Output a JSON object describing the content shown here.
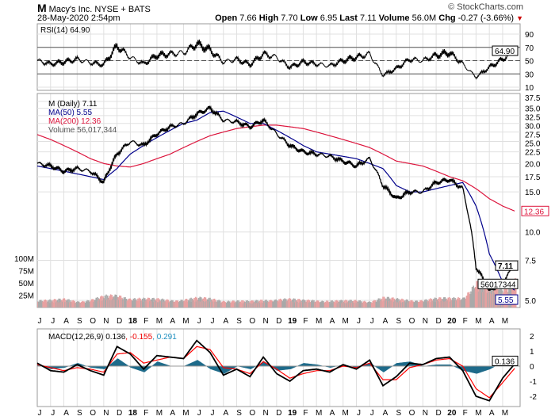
{
  "header": {
    "symbol": "M",
    "name": "Macy's Inc.",
    "exchange": "NYSE + BATS",
    "date": "28-May-2020 2:54pm",
    "brand": "© StockCharts.com",
    "open_label": "Open",
    "open": "7.66",
    "high_label": "High",
    "high": "7.70",
    "low_label": "Low",
    "low": "6.95",
    "last_label": "Last",
    "last": "7.11",
    "volume_label": "Volume",
    "volume": "56.0M",
    "chg_label": "Chg",
    "chg": "-0.27 (-3.66%)"
  },
  "colors": {
    "price": "#000000",
    "ma50": "#00008b",
    "ma200": "#dc143c",
    "vol_up": "#a9a9a9",
    "vol_down": "#e8a0a0",
    "rsi": "#000000",
    "rsi_fill": "#8b5a5a",
    "macd": "#000000",
    "signal": "#ff0000",
    "hist": "#1f6b8a",
    "grid": "#e0e0e0"
  },
  "chart_data": [
    {
      "type": "line",
      "panel": "rsi",
      "legend": "RSI(14) 64.90",
      "y_ticks": [
        "90",
        "70",
        "50",
        "30",
        "10"
      ],
      "ylim": [
        0,
        100
      ],
      "levels": [
        70,
        50,
        30
      ],
      "last_label": "64.90",
      "x": [
        0,
        1,
        2,
        3,
        4,
        5,
        6,
        7,
        8,
        9,
        10,
        11,
        12,
        13,
        14,
        15,
        16,
        17,
        18,
        19,
        20,
        21,
        22,
        23,
        24,
        25,
        26,
        27,
        28,
        29,
        30,
        31,
        32,
        33,
        34,
        35,
        35.9
      ],
      "values": [
        50,
        45,
        48,
        52,
        47,
        44,
        72,
        55,
        45,
        58,
        60,
        62,
        75,
        66,
        48,
        52,
        44,
        60,
        55,
        40,
        48,
        45,
        42,
        50,
        55,
        60,
        28,
        38,
        52,
        50,
        58,
        62,
        45,
        25,
        40,
        52,
        64.9
      ]
    },
    {
      "type": "line",
      "panel": "price",
      "scale": "log",
      "legend": [
        "M (Daily) 7.11",
        "MA(50) 5.55",
        "MA(200) 12.36",
        "Volume 56,017,344"
      ],
      "y_ticks": [
        "37.5",
        "35.0",
        "32.5",
        "30.0",
        "27.5",
        "25.0",
        "22.5",
        "20.0",
        "17.5",
        "15.0",
        "10.0",
        "7.5",
        "5.0"
      ],
      "vol_ticks": [
        "100M",
        "75M",
        "50M",
        "25M"
      ],
      "x": [
        0,
        1,
        2,
        3,
        4,
        5,
        6,
        7,
        8,
        9,
        10,
        11,
        12,
        13,
        14,
        15,
        16,
        17,
        18,
        19,
        20,
        21,
        22,
        23,
        24,
        25,
        26,
        27,
        28,
        29,
        30,
        31,
        32,
        33,
        34,
        35,
        35.9
      ],
      "series": [
        {
          "name": "M (Daily)",
          "values": [
            20,
            19.5,
            18.5,
            19,
            18.5,
            16.5,
            22,
            25,
            24,
            27,
            29,
            30,
            33,
            35,
            31,
            30.5,
            29,
            31,
            27,
            24,
            22.5,
            22,
            21.5,
            20.5,
            19.5,
            21,
            16,
            14,
            15,
            15,
            16.5,
            17,
            15.5,
            7,
            5.5,
            6,
            7.11
          ]
        },
        {
          "name": "MA(50)",
          "values": [
            19.5,
            19,
            18.5,
            18,
            17.5,
            17,
            19,
            22,
            24,
            26,
            28,
            30,
            31,
            33.5,
            34,
            32,
            30,
            30,
            28,
            26,
            24,
            22.5,
            22,
            21.5,
            21,
            20,
            19,
            16,
            15,
            15,
            15.5,
            16,
            16.5,
            13,
            8,
            6,
            5.55
          ]
        },
        {
          "name": "MA(200)",
          "values": [
            26.8,
            25.5,
            24,
            22.5,
            21,
            20,
            19.5,
            19.3,
            20,
            21,
            22,
            23.5,
            25,
            26.5,
            27.5,
            28.5,
            29,
            29.5,
            29.5,
            29,
            28.5,
            27.5,
            26.5,
            25.5,
            24.5,
            23.5,
            22,
            20.5,
            20,
            19.5,
            18.5,
            17.5,
            16.8,
            15.5,
            14,
            13,
            12.36
          ]
        },
        {
          "name": "Volume (M)",
          "values": [
            14,
            13,
            15,
            12,
            14,
            20,
            22,
            18,
            16,
            15,
            14,
            15,
            17,
            16,
            13,
            12,
            11,
            14,
            16,
            15,
            13,
            14,
            12,
            12,
            13,
            12,
            18,
            15,
            14,
            14,
            16,
            17,
            20,
            45,
            40,
            35,
            56
          ]
        }
      ],
      "price_last": "7.11",
      "ma50_last": "5.55",
      "ma200_last": "12.36",
      "volume_last": "56017344"
    },
    {
      "type": "line",
      "panel": "macd",
      "legend": {
        "name": "MACD(12,26,9)",
        "macd": "0.136",
        "signal": "-0.155",
        "hist": "0.291"
      },
      "y_ticks": [
        "2",
        "1",
        "0",
        "-1",
        "-2"
      ],
      "ylim": [
        -2.6,
        2.4
      ],
      "x": [
        0,
        1,
        2,
        3,
        4,
        5,
        6,
        7,
        8,
        9,
        10,
        11,
        12,
        13,
        14,
        15,
        16,
        17,
        18,
        19,
        20,
        21,
        22,
        23,
        24,
        25,
        26,
        27,
        28,
        29,
        30,
        31,
        32,
        33,
        34,
        35,
        35.9
      ],
      "series": [
        {
          "name": "MACD",
          "values": [
            0.2,
            -0.3,
            -0.4,
            0.1,
            -0.3,
            -0.6,
            1.3,
            0.8,
            -0.2,
            0.7,
            0.6,
            0.5,
            1.7,
            0.9,
            -0.6,
            -0.2,
            -0.7,
            0.6,
            -0.5,
            -1.0,
            -0.3,
            -0.2,
            -0.4,
            0.1,
            -0.2,
            0.4,
            -1.3,
            -0.7,
            0.2,
            0.1,
            0.5,
            0.6,
            -0.3,
            -2.0,
            -2.3,
            -0.8,
            0.136
          ]
        },
        {
          "name": "Signal",
          "values": [
            0.1,
            -0.1,
            -0.3,
            -0.1,
            -0.2,
            -0.4,
            0.8,
            0.9,
            0.2,
            0.4,
            0.6,
            0.5,
            1.3,
            1.1,
            -0.1,
            -0.2,
            -0.5,
            0.3,
            -0.2,
            -0.8,
            -0.5,
            -0.3,
            -0.3,
            0.0,
            -0.1,
            0.2,
            -0.9,
            -0.9,
            -0.1,
            0.1,
            0.4,
            0.5,
            0.0,
            -1.5,
            -2.1,
            -1.1,
            -0.155
          ]
        },
        {
          "name": "Histogram",
          "values": [
            0.1,
            -0.2,
            -0.1,
            0.2,
            -0.1,
            -0.2,
            0.5,
            -0.1,
            -0.4,
            0.3,
            0.0,
            0.0,
            0.4,
            -0.2,
            -0.5,
            0.0,
            -0.2,
            0.3,
            -0.3,
            -0.2,
            0.2,
            0.1,
            -0.1,
            0.1,
            -0.1,
            0.2,
            -0.4,
            0.2,
            0.3,
            0.0,
            0.1,
            0.1,
            -0.3,
            -0.5,
            -0.2,
            0.3,
            0.291
          ]
        }
      ]
    }
  ],
  "x_axis": {
    "labels": [
      "J",
      "J",
      "A",
      "S",
      "O",
      "N",
      "D",
      "18",
      "F",
      "M",
      "A",
      "M",
      "J",
      "J",
      "A",
      "S",
      "O",
      "N",
      "D",
      "19",
      "F",
      "M",
      "A",
      "M",
      "J",
      "J",
      "A",
      "S",
      "O",
      "N",
      "D",
      "20",
      "F",
      "M",
      "A",
      "M"
    ],
    "bold": [
      "18",
      "19",
      "20"
    ]
  }
}
